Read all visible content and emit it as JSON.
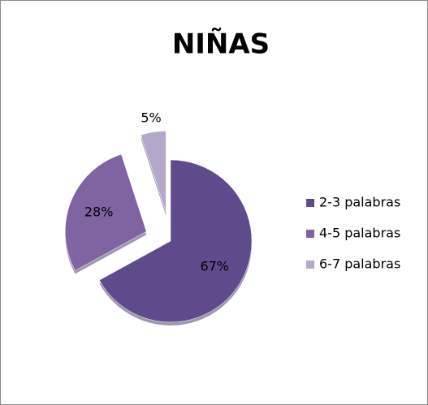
{
  "chart_data": {
    "type": "pie",
    "title": "NIÑAS",
    "categories": [
      "2-3 palabras",
      "4-5 palabras",
      "6-7 palabras"
    ],
    "values": [
      67,
      28,
      5
    ],
    "value_labels": [
      "67%",
      "28%",
      "5%"
    ],
    "colors": [
      "#5f4b8b",
      "#8064a2",
      "#b3a8ca"
    ],
    "legend": "right"
  }
}
